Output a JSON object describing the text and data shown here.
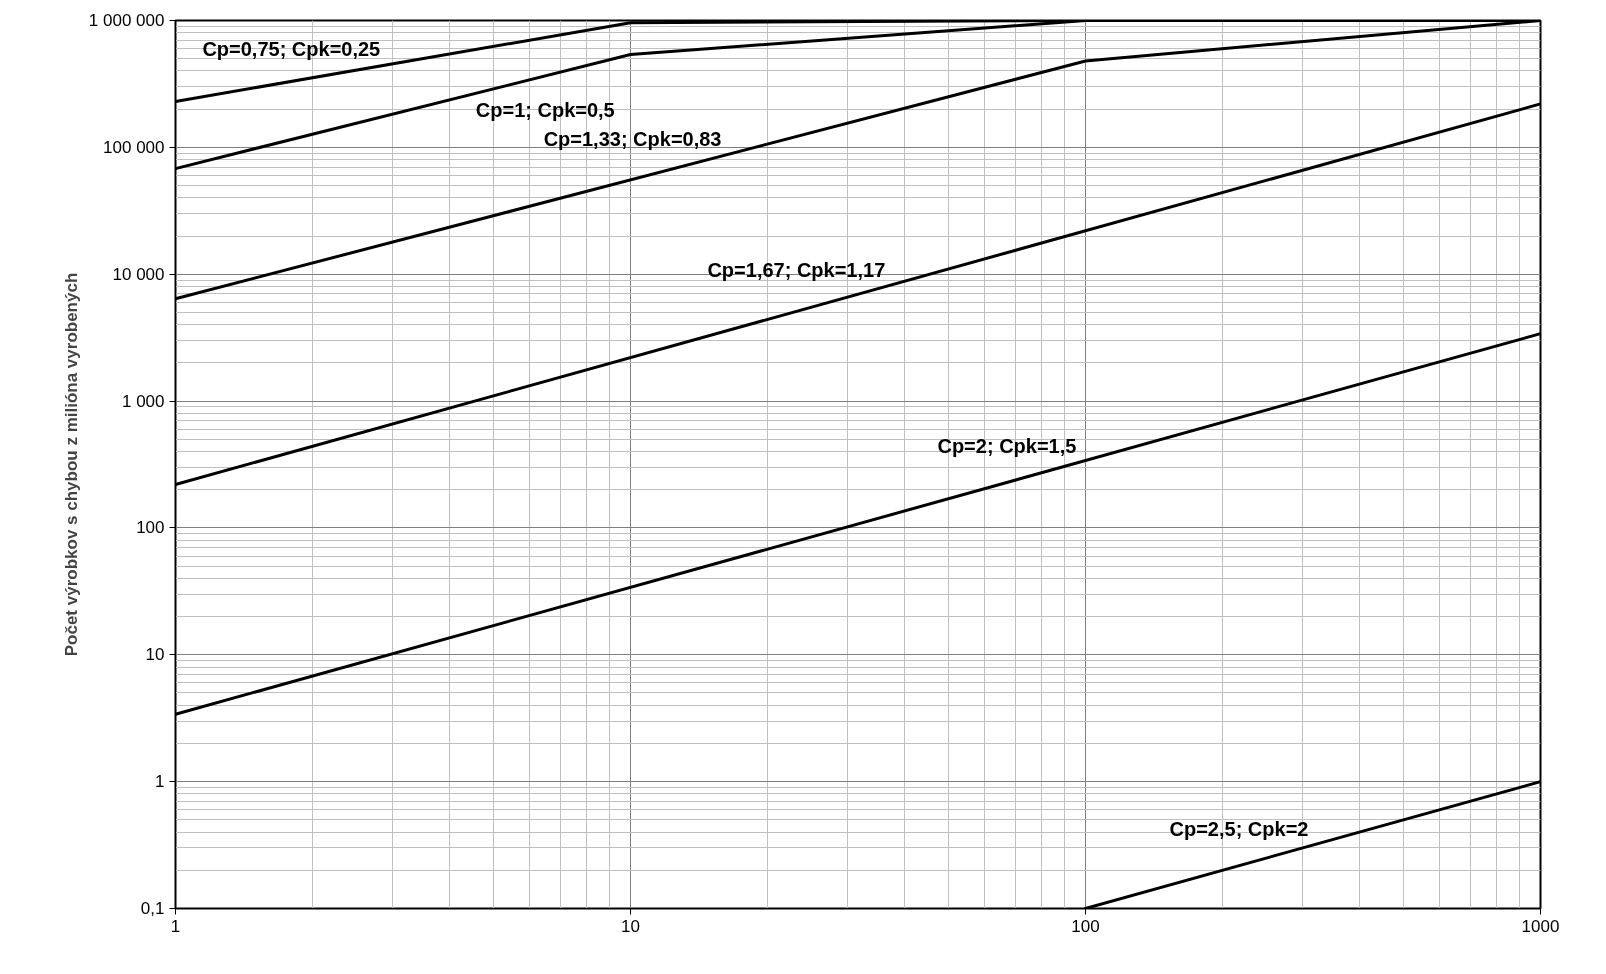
{
  "chart_data": {
    "type": "line",
    "ylabel": "Počet výrobkov s chybou z milióna vyrobených",
    "log": "xy",
    "grid": true,
    "xlim": [
      1,
      1000
    ],
    "ylim": [
      0.1,
      1000000
    ],
    "xticks": [
      1,
      10,
      100,
      1000
    ],
    "yticks": [
      {
        "value": 0.1,
        "label": "0,1"
      },
      1,
      10,
      100,
      {
        "value": 1000,
        "label": "1 000"
      },
      {
        "value": 10000,
        "label": "10 000"
      },
      {
        "value": 100000,
        "label": "100 000"
      },
      {
        "value": 1000000,
        "label": "1 000 000"
      }
    ],
    "series": [
      {
        "name": "Cp=0,75; Cpk=0,25",
        "color": "#000000",
        "x": [
          1,
          10,
          100,
          1000
        ],
        "values": [
          230000,
          960000,
          1000000,
          1000000
        ]
      },
      {
        "name": "Cp=1; Cpk=0,5",
        "color": "#000000",
        "x": [
          1,
          10,
          100,
          1000
        ],
        "values": [
          68000,
          540000,
          1000000,
          1000000
        ]
      },
      {
        "name": "Cp=1,33; Cpk=0,83",
        "color": "#000000",
        "x": [
          1,
          100,
          1000
        ],
        "values": [
          6400,
          480000,
          1000000
        ]
      },
      {
        "name": "Cp=1,67; Cpk=1,17",
        "color": "#000000",
        "x": [
          1,
          1000
        ],
        "values": [
          220,
          220000
        ]
      },
      {
        "name": "Cp=2; Cpk=1,5",
        "color": "#000000",
        "x": [
          1,
          1000
        ],
        "values": [
          3.4,
          3400
        ]
      },
      {
        "name": "Cp=2,5; Cpk=2",
        "color": "#000000",
        "x": [
          100,
          1000
        ],
        "values": [
          0.1,
          1
        ]
      }
    ]
  }
}
